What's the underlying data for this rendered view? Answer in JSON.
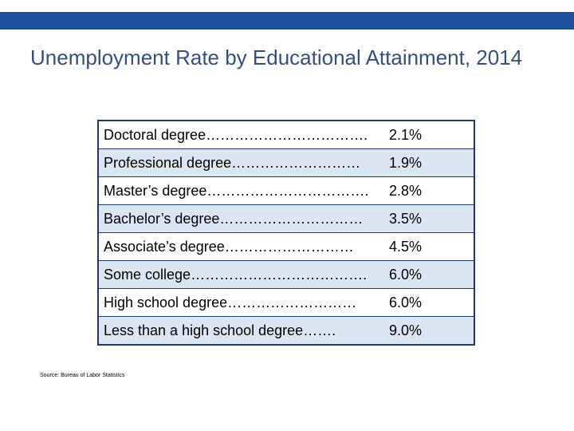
{
  "header": {
    "title": "Unemployment Rate by Educational Attainment, 2014"
  },
  "table": {
    "rows": [
      [
        "Doctoral degree…………………………….",
        "2.1%"
      ],
      [
        "Professional degree………………………",
        "1.9%"
      ],
      [
        "Master’s degree…………………………….",
        "2.8%"
      ],
      [
        "Bachelor’s degree…………………………",
        "3.5%"
      ],
      [
        "Associate’s degree………………………",
        "4.5%"
      ],
      [
        "Some college……………………………….",
        "6.0%"
      ],
      [
        "High school degree………………………",
        "6.0%"
      ],
      [
        "Less than a high school degree…….",
        "9.0%"
      ]
    ]
  },
  "source": "Source: Bureau of Labor Statistics"
}
